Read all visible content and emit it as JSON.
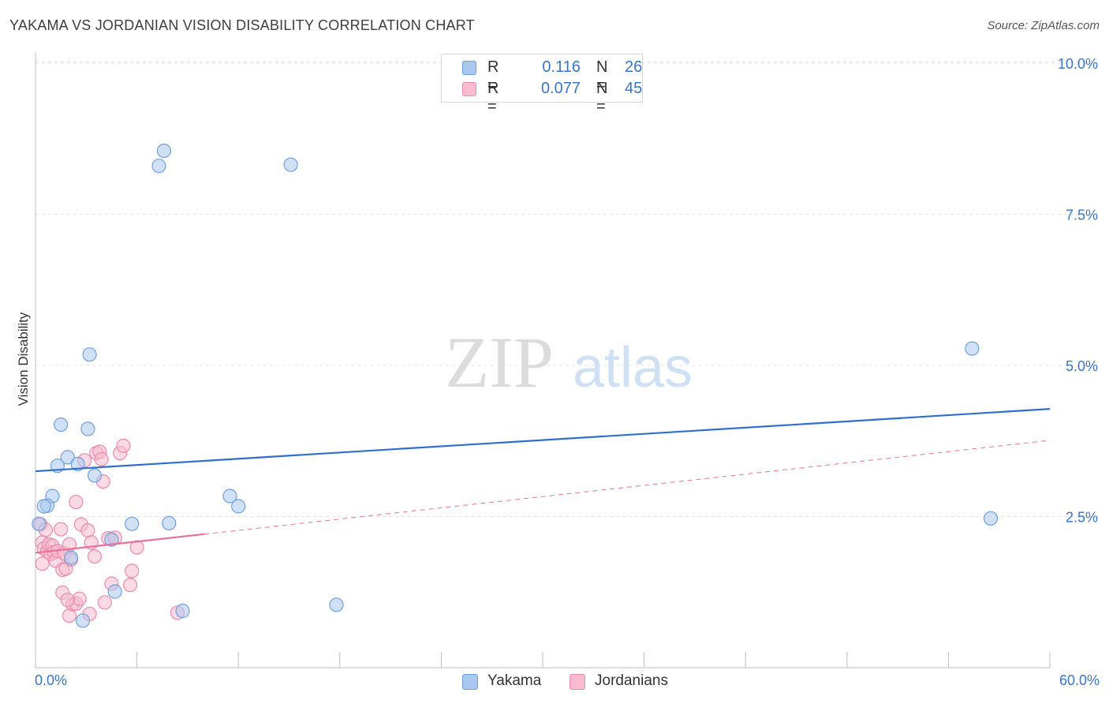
{
  "title": "YAKAMA VS JORDANIAN VISION DISABILITY CORRELATION CHART",
  "source": "Source: ZipAtlas.com",
  "watermark": {
    "zip": "ZIP",
    "atlas": "atlas"
  },
  "legend_top": [
    {
      "r_label": "R =",
      "r_value": "0.116",
      "n_label": "N =",
      "n_value": "26",
      "color": "#a9c8f0",
      "border": "#6f9fdc"
    },
    {
      "r_label": "R =",
      "r_value": "0.077",
      "n_label": "N =",
      "n_value": "45",
      "color": "#f7bccf",
      "border": "#e98aaa"
    }
  ],
  "legend_bottom": [
    {
      "label": "Yakama",
      "color": "#a9c8f0",
      "border": "#6f9fdc"
    },
    {
      "label": "Jordanians",
      "color": "#f7bccf",
      "border": "#e98aaa"
    }
  ],
  "chart_data": {
    "type": "scatter",
    "title": "YAKAMA VS JORDANIAN VISION DISABILITY CORRELATION CHART",
    "xlabel": "",
    "ylabel": "Vision Disability",
    "xlim": [
      0,
      60
    ],
    "ylim": [
      0,
      10.3
    ],
    "x_tick_labels": [
      "0.0%",
      "60.0%"
    ],
    "y_ticks": [
      2.5,
      5.0,
      7.5,
      10.0
    ],
    "y_tick_labels": [
      "2.5%",
      "5.0%",
      "7.5%",
      "10.0%"
    ],
    "grid": "horizontal dashed",
    "legend_position": "top-center",
    "series": [
      {
        "name": "Yakama",
        "color": "#6f9fdc",
        "fill": "#a9c8f0",
        "trend_color": "#2f6fcc",
        "trend": {
          "x": [
            0,
            60
          ],
          "y": [
            3.25,
            4.28
          ],
          "style": "solid"
        },
        "points": [
          [
            7.6,
            8.55
          ],
          [
            7.3,
            8.3
          ],
          [
            15.1,
            8.32
          ],
          [
            3.2,
            5.18
          ],
          [
            55.4,
            5.28
          ],
          [
            1.5,
            4.02
          ],
          [
            3.1,
            3.95
          ],
          [
            1.9,
            3.48
          ],
          [
            2.5,
            3.37
          ],
          [
            1.3,
            3.34
          ],
          [
            3.5,
            3.18
          ],
          [
            1.0,
            2.84
          ],
          [
            11.5,
            2.84
          ],
          [
            12.0,
            2.67
          ],
          [
            0.7,
            2.68
          ],
          [
            0.5,
            2.67
          ],
          [
            0.2,
            2.38
          ],
          [
            5.7,
            2.38
          ],
          [
            7.9,
            2.39
          ],
          [
            56.5,
            2.47
          ],
          [
            4.5,
            2.12
          ],
          [
            2.1,
            1.82
          ],
          [
            4.7,
            1.26
          ],
          [
            17.8,
            1.04
          ],
          [
            8.7,
            0.94
          ],
          [
            2.8,
            0.78
          ]
        ]
      },
      {
        "name": "Jordanians",
        "color": "#e98aaa",
        "fill": "#f7bccf",
        "trend_color": "#e8709a",
        "trend": {
          "x": [
            0,
            60
          ],
          "y": [
            1.9,
            3.76
          ],
          "style": "solid to x=10, dashed beyond"
        },
        "points": [
          [
            0.3,
            2.37
          ],
          [
            0.6,
            2.28
          ],
          [
            0.4,
            2.07
          ],
          [
            0.5,
            1.97
          ],
          [
            0.7,
            1.92
          ],
          [
            0.8,
            2.04
          ],
          [
            0.9,
            1.88
          ],
          [
            1.0,
            2.02
          ],
          [
            1.1,
            1.91
          ],
          [
            1.2,
            1.77
          ],
          [
            1.3,
            1.93
          ],
          [
            0.4,
            1.72
          ],
          [
            1.5,
            2.29
          ],
          [
            1.6,
            1.62
          ],
          [
            1.7,
            1.89
          ],
          [
            1.8,
            1.64
          ],
          [
            2.0,
            2.04
          ],
          [
            2.1,
            1.79
          ],
          [
            2.4,
            2.74
          ],
          [
            2.7,
            2.37
          ],
          [
            2.9,
            3.43
          ],
          [
            3.1,
            2.27
          ],
          [
            3.3,
            2.07
          ],
          [
            3.5,
            1.84
          ],
          [
            3.6,
            3.55
          ],
          [
            3.8,
            3.57
          ],
          [
            3.9,
            3.45
          ],
          [
            4.0,
            3.08
          ],
          [
            4.1,
            1.08
          ],
          [
            4.3,
            2.14
          ],
          [
            4.5,
            1.39
          ],
          [
            4.7,
            2.15
          ],
          [
            5.0,
            3.55
          ],
          [
            5.2,
            3.67
          ],
          [
            5.6,
            1.37
          ],
          [
            5.7,
            1.6
          ],
          [
            6.0,
            1.99
          ],
          [
            1.6,
            1.24
          ],
          [
            2.0,
            0.86
          ],
          [
            2.2,
            1.05
          ],
          [
            2.4,
            1.06
          ],
          [
            2.6,
            1.14
          ],
          [
            3.2,
            0.89
          ],
          [
            8.4,
            0.91
          ],
          [
            1.9,
            1.12
          ]
        ]
      }
    ]
  }
}
